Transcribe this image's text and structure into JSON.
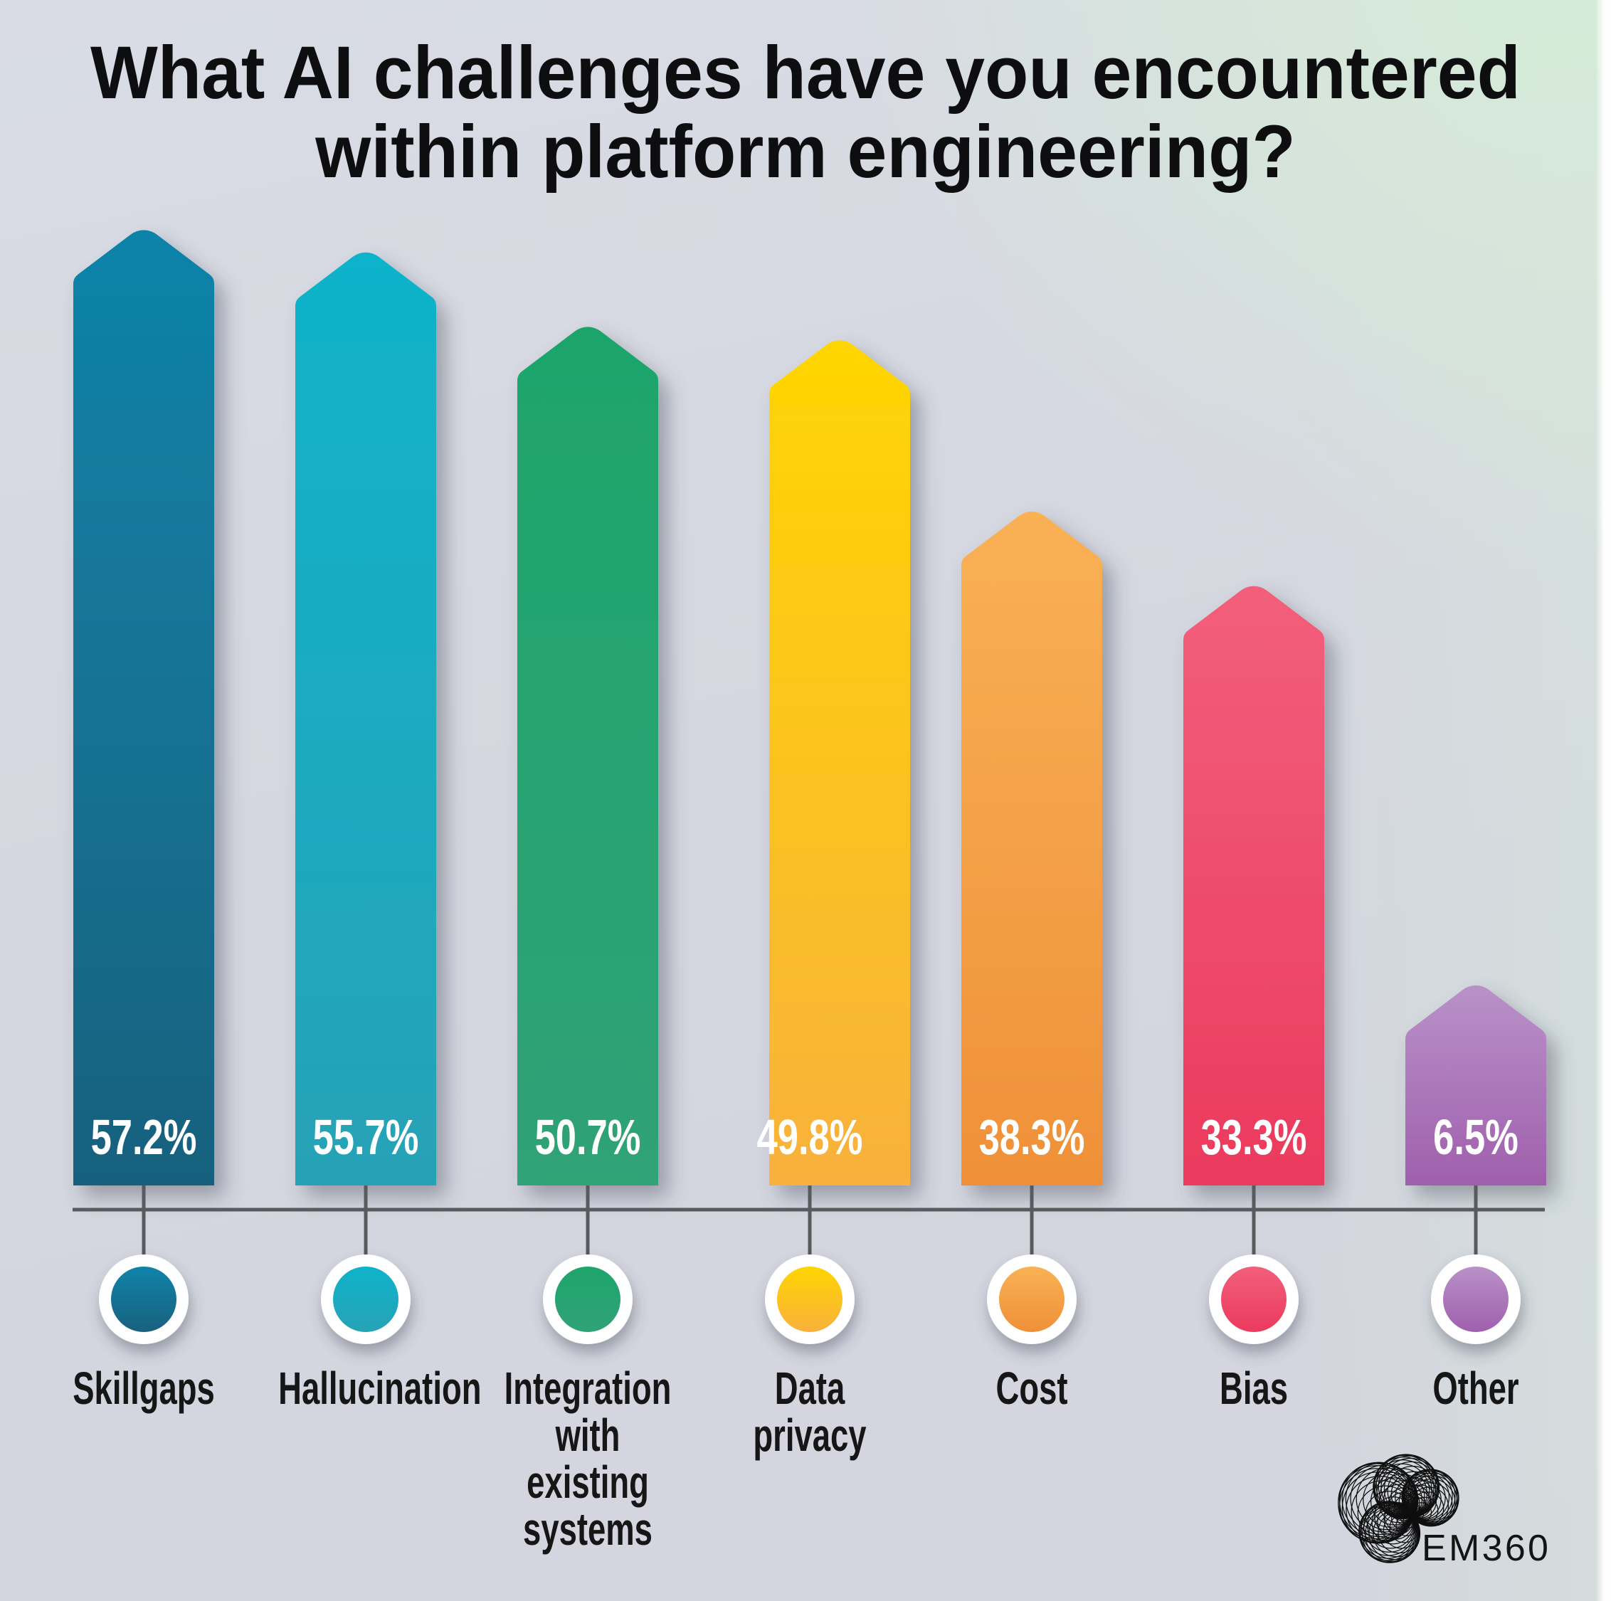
{
  "title": "What AI challenges have you encountered within platform engineering?",
  "chart_data": {
    "type": "bar",
    "title": "What AI challenges have you encountered within platform engineering?",
    "categories": [
      "Skillgaps",
      "Hallucination",
      "Integration with existing systems",
      "Data privacy",
      "Cost",
      "Bias",
      "Other"
    ],
    "values": [
      57.2,
      55.7,
      50.7,
      49.8,
      38.3,
      33.3,
      6.5
    ],
    "value_labels": [
      "57.2%",
      "55.7%",
      "50.7%",
      "49.8%",
      "38.3%",
      "33.3%",
      "6.5%"
    ],
    "bar_colors_top": [
      "#1083A9",
      "#0FB3CA",
      "#1EA56B",
      "#FFD502",
      "#F9B154",
      "#F25F7B",
      "#B991C8"
    ],
    "bar_colors_bottom": [
      "#18617E",
      "#27A2B6",
      "#30A277",
      "#F8B13C",
      "#EF9038",
      "#EB3A5D",
      "#A05FAD"
    ],
    "xlabel": "",
    "ylabel": "",
    "grid": false,
    "legend": false,
    "axis_color": "#595a5e",
    "value_label_color": "#ffffff",
    "category_label_color": "#161616"
  },
  "branding": {
    "logo_text": "EM360",
    "logo_icon": "spirograph-fan-icon"
  }
}
